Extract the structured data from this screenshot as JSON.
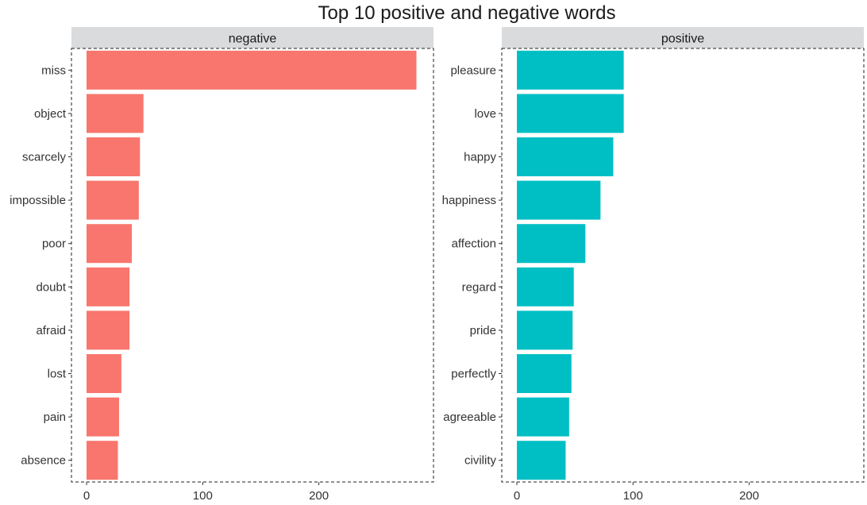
{
  "chart_data": {
    "type": "bar",
    "orientation": "horizontal",
    "title": "Top 10 positive and negative words",
    "xlabel": "",
    "ylabel": "",
    "xlim": [
      0,
      285
    ],
    "xticks": [
      0,
      100,
      200
    ],
    "grid": false,
    "legend": "none",
    "facets": [
      {
        "name": "negative",
        "color": "#F8766D",
        "categories": [
          "miss",
          "object",
          "scarcely",
          "impossible",
          "poor",
          "doubt",
          "afraid",
          "lost",
          "pain",
          "absence"
        ],
        "values": [
          284,
          49,
          46,
          45,
          39,
          37,
          37,
          30,
          28,
          27
        ]
      },
      {
        "name": "positive",
        "color": "#00BFC4",
        "categories": [
          "pleasure",
          "love",
          "happy",
          "happiness",
          "affection",
          "regard",
          "pride",
          "perfectly",
          "agreeable",
          "civility"
        ],
        "values": [
          92,
          92,
          83,
          72,
          59,
          49,
          48,
          47,
          45,
          42
        ]
      }
    ]
  }
}
